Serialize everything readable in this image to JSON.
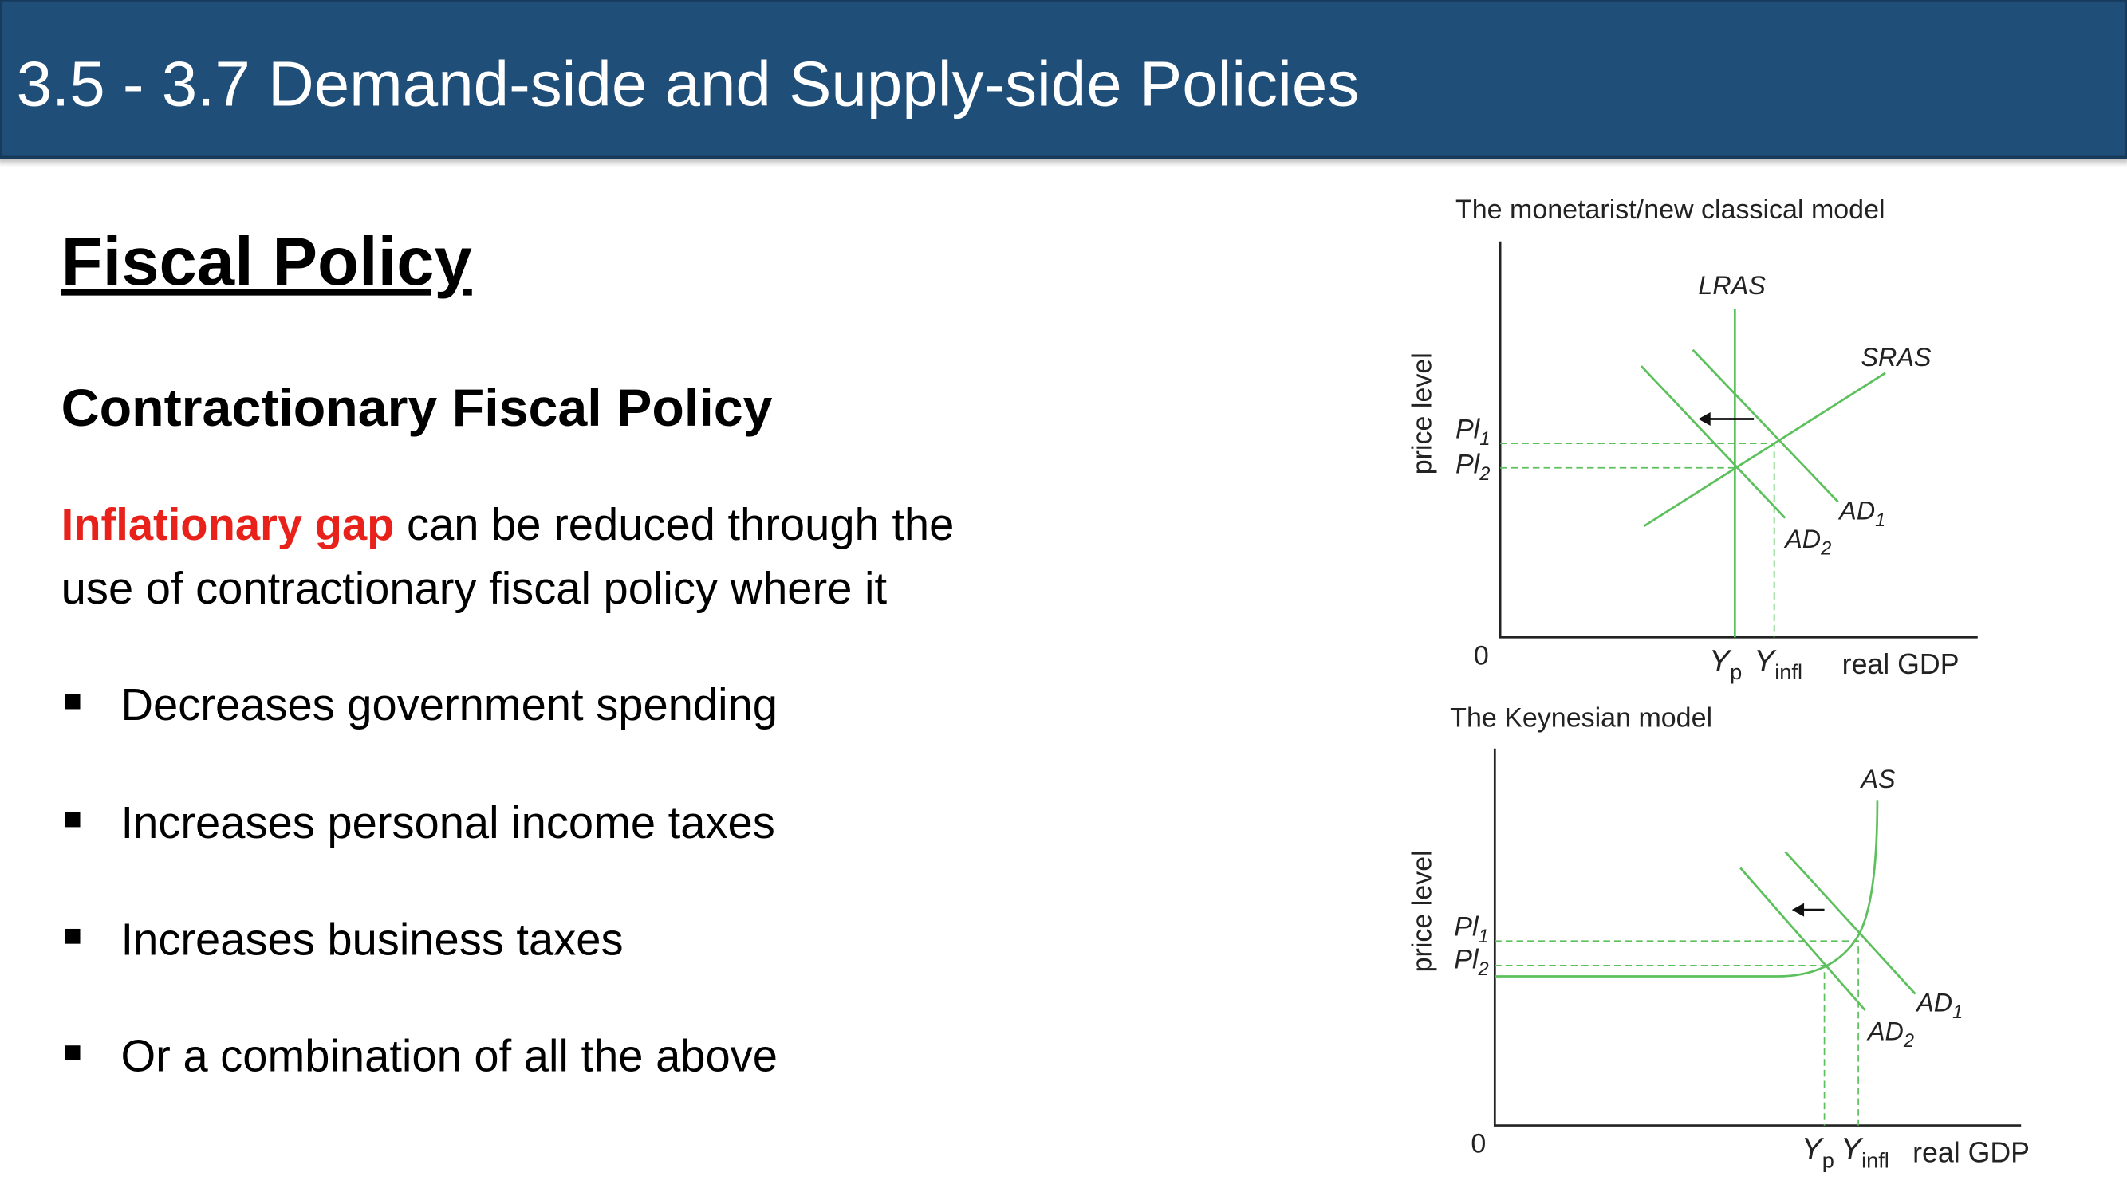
{
  "header": {
    "title": "3.5 - 3.7 Demand-side and Supply-side Policies"
  },
  "heading": "Fiscal Policy",
  "subheading": "Contractionary Fiscal Policy",
  "paragraph": {
    "highlight": "Inflationary gap",
    "lines": [
      "can be reduced through the",
      "use of contractionary fiscal policy where it"
    ]
  },
  "bullets": [
    "Decreases government spending",
    "Increases personal income taxes",
    "Increases business taxes",
    "Or a combination of all the above"
  ],
  "diagrams": [
    {
      "title": "The monetarist/new classical model",
      "y_axis_label": "price level",
      "x_axis_label": "real GDP",
      "origin": "0",
      "curves": [
        {
          "label": "LRAS"
        },
        {
          "label": "SRAS"
        },
        {
          "label": "AD",
          "subscript": "1"
        },
        {
          "label": "AD",
          "subscript": "2"
        }
      ],
      "price_levels": [
        {
          "label": "Pl",
          "subscript": "1"
        },
        {
          "label": "Pl",
          "subscript": "2"
        }
      ],
      "outputs": [
        {
          "label": "Y",
          "subscript": "p"
        },
        {
          "label": "Y",
          "subscript": "infl"
        }
      ]
    },
    {
      "title": "The Keynesian model",
      "y_axis_label": "price level",
      "x_axis_label": "real GDP",
      "origin": "0",
      "curves": [
        {
          "label": "AS"
        },
        {
          "label": "AD",
          "subscript": "1"
        },
        {
          "label": "AD",
          "subscript": "2"
        }
      ],
      "price_levels": [
        {
          "label": "Pl",
          "subscript": "1"
        },
        {
          "label": "Pl",
          "subscript": "2"
        }
      ],
      "outputs": [
        {
          "label": "Y",
          "subscript": "p"
        },
        {
          "label": "Y",
          "subscript": "infl"
        }
      ]
    }
  ]
}
